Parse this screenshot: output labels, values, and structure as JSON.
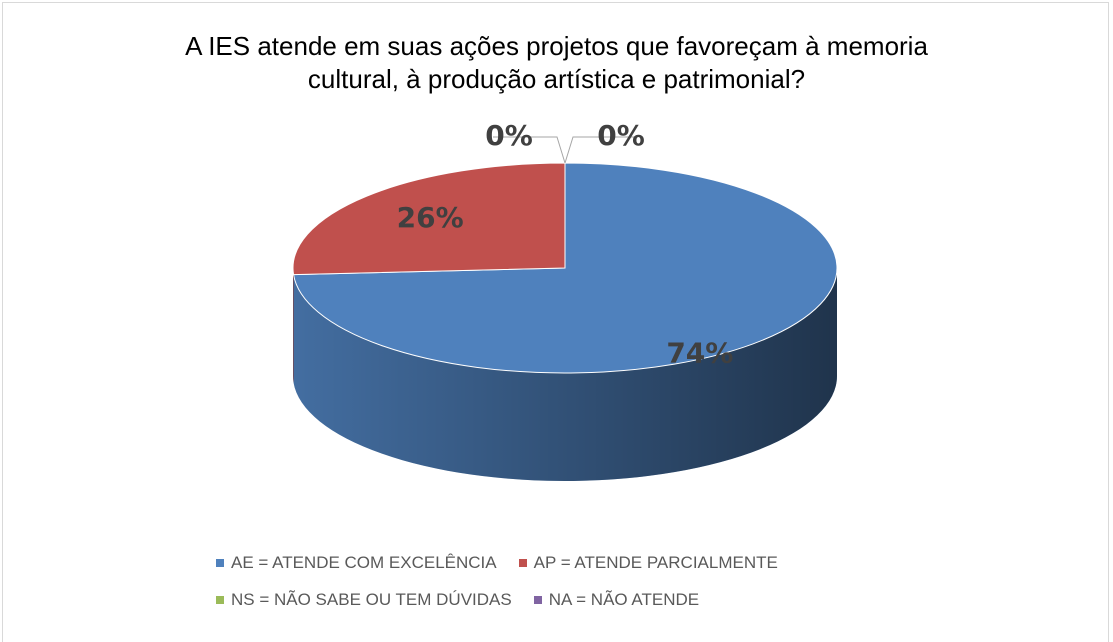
{
  "chart_data": {
    "type": "pie",
    "title": "A IES atende em suas ações projetos que favoreçam à memoria cultural, à produção artística e patrimonial?",
    "categories": [
      "AE = ATENDE COM EXCELÊNCIA",
      "AP = ATENDE PARCIALMENTE",
      "NS = NÃO SABE OU TEM DÚVIDAS",
      "NA = NÃO ATENDE"
    ],
    "values": [
      74,
      26,
      0,
      0
    ],
    "value_labels": [
      "74%",
      "26%",
      "0%",
      "0%"
    ],
    "colors": [
      "#4f81bd",
      "#c0504d",
      "#9bbb59",
      "#8064a2"
    ],
    "legend": "bottom"
  }
}
